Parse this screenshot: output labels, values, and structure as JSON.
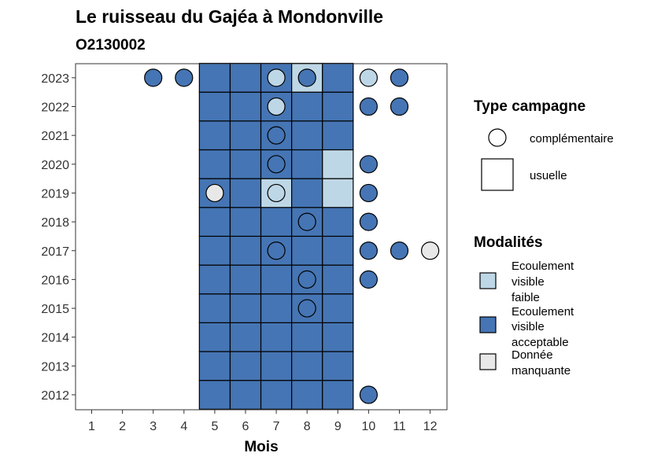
{
  "chart_data": {
    "type": "heatmap",
    "title": "Le ruisseau du Gajéa à Mondonville",
    "subtitle": "O2130002",
    "xlabel": "Mois",
    "ylabel": "",
    "x_ticks": [
      "1",
      "2",
      "3",
      "4",
      "5",
      "6",
      "7",
      "8",
      "9",
      "10",
      "11",
      "12"
    ],
    "y_ticks": [
      "2012",
      "2013",
      "2014",
      "2015",
      "2016",
      "2017",
      "2018",
      "2019",
      "2020",
      "2021",
      "2022",
      "2023"
    ],
    "colors": {
      "faible": "#bed7e6",
      "acceptable": "#4575b4",
      "manquante": "#e8e8e8"
    },
    "legend_campagne": {
      "title": "Type campagne",
      "items": [
        {
          "shape": "circle",
          "label": "complémentaire"
        },
        {
          "shape": "square",
          "label": "usuelle"
        }
      ]
    },
    "legend_modalites": {
      "title": "Modalités",
      "items": [
        {
          "key": "faible",
          "lines": [
            "Ecoulement",
            "visible",
            "faible"
          ]
        },
        {
          "key": "acceptable",
          "lines": [
            "Ecoulement",
            "visible",
            "acceptable"
          ]
        },
        {
          "key": "manquante",
          "lines": [
            "Donnée",
            "manquante"
          ]
        }
      ]
    },
    "usuelle": [
      {
        "year": 2012,
        "months": [
          5,
          6,
          7,
          8,
          9
        ],
        "values": [
          "acceptable",
          "acceptable",
          "acceptable",
          "acceptable",
          "acceptable"
        ]
      },
      {
        "year": 2013,
        "months": [
          5,
          6,
          7,
          8,
          9
        ],
        "values": [
          "acceptable",
          "acceptable",
          "acceptable",
          "acceptable",
          "acceptable"
        ]
      },
      {
        "year": 2014,
        "months": [
          5,
          6,
          7,
          8,
          9
        ],
        "values": [
          "acceptable",
          "acceptable",
          "acceptable",
          "acceptable",
          "acceptable"
        ]
      },
      {
        "year": 2015,
        "months": [
          5,
          6,
          7,
          8,
          9
        ],
        "values": [
          "acceptable",
          "acceptable",
          "acceptable",
          "acceptable",
          "acceptable"
        ]
      },
      {
        "year": 2016,
        "months": [
          5,
          6,
          7,
          8,
          9
        ],
        "values": [
          "acceptable",
          "acceptable",
          "acceptable",
          "acceptable",
          "acceptable"
        ]
      },
      {
        "year": 2017,
        "months": [
          5,
          6,
          7,
          8,
          9
        ],
        "values": [
          "acceptable",
          "acceptable",
          "acceptable",
          "acceptable",
          "acceptable"
        ]
      },
      {
        "year": 2018,
        "months": [
          5,
          6,
          7,
          8,
          9
        ],
        "values": [
          "acceptable",
          "acceptable",
          "acceptable",
          "acceptable",
          "acceptable"
        ]
      },
      {
        "year": 2019,
        "months": [
          5,
          6,
          7,
          8,
          9
        ],
        "values": [
          "acceptable",
          "acceptable",
          "faible",
          "acceptable",
          "faible"
        ]
      },
      {
        "year": 2020,
        "months": [
          5,
          6,
          7,
          8,
          9
        ],
        "values": [
          "acceptable",
          "acceptable",
          "acceptable",
          "acceptable",
          "faible"
        ]
      },
      {
        "year": 2021,
        "months": [
          5,
          6,
          7,
          8,
          9
        ],
        "values": [
          "acceptable",
          "acceptable",
          "acceptable",
          "acceptable",
          "acceptable"
        ]
      },
      {
        "year": 2022,
        "months": [
          5,
          6,
          7,
          8,
          9
        ],
        "values": [
          "acceptable",
          "acceptable",
          "acceptable",
          "acceptable",
          "acceptable"
        ]
      },
      {
        "year": 2023,
        "months": [
          5,
          6,
          7,
          8,
          9
        ],
        "values": [
          "acceptable",
          "acceptable",
          "acceptable",
          "faible",
          "acceptable"
        ]
      }
    ],
    "complementaire": [
      {
        "year": 2023,
        "month": 3,
        "value": "acceptable"
      },
      {
        "year": 2023,
        "month": 4,
        "value": "acceptable"
      },
      {
        "year": 2023,
        "month": 7,
        "value": "faible"
      },
      {
        "year": 2023,
        "month": 8,
        "value": "acceptable"
      },
      {
        "year": 2023,
        "month": 10,
        "value": "faible"
      },
      {
        "year": 2023,
        "month": 11,
        "value": "acceptable"
      },
      {
        "year": 2022,
        "month": 7,
        "value": "faible"
      },
      {
        "year": 2022,
        "month": 10,
        "value": "acceptable"
      },
      {
        "year": 2022,
        "month": 11,
        "value": "acceptable"
      },
      {
        "year": 2021,
        "month": 7,
        "value": "acceptable"
      },
      {
        "year": 2020,
        "month": 7,
        "value": "acceptable"
      },
      {
        "year": 2020,
        "month": 10,
        "value": "acceptable"
      },
      {
        "year": 2019,
        "month": 5,
        "value": "manquante"
      },
      {
        "year": 2019,
        "month": 7,
        "value": "faible"
      },
      {
        "year": 2019,
        "month": 10,
        "value": "acceptable"
      },
      {
        "year": 2018,
        "month": 8,
        "value": "acceptable"
      },
      {
        "year": 2018,
        "month": 10,
        "value": "acceptable"
      },
      {
        "year": 2017,
        "month": 7,
        "value": "acceptable"
      },
      {
        "year": 2017,
        "month": 10,
        "value": "acceptable"
      },
      {
        "year": 2017,
        "month": 11,
        "value": "acceptable"
      },
      {
        "year": 2017,
        "month": 12,
        "value": "manquante"
      },
      {
        "year": 2016,
        "month": 8,
        "value": "acceptable"
      },
      {
        "year": 2016,
        "month": 10,
        "value": "acceptable"
      },
      {
        "year": 2015,
        "month": 8,
        "value": "acceptable"
      },
      {
        "year": 2012,
        "month": 10,
        "value": "acceptable"
      }
    ]
  }
}
